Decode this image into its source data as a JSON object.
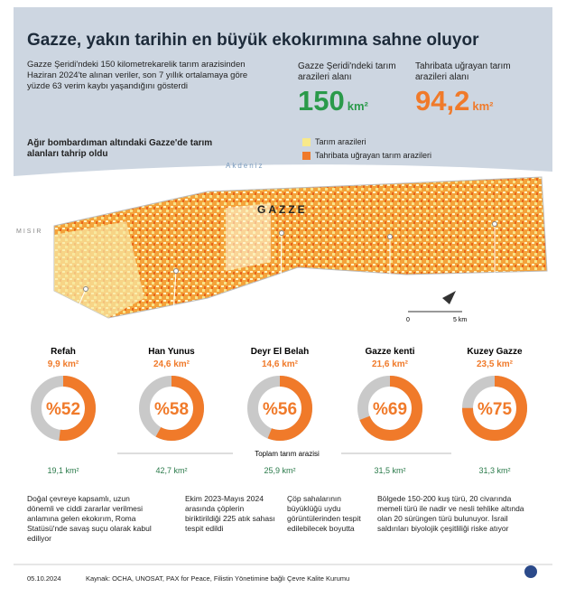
{
  "header": {
    "title": "Gazze, yakın tarihin en büyük ekokırımına sahne oluyor",
    "intro": "Gazze Şeridi'ndeki 150 kilometrekarelik tarım arazisinden Haziran 2024'te alınan veriler, son 7 yıllık ortalamaya göre yüzde 63 verim kaybı yaşandığını gösterdi"
  },
  "stats": [
    {
      "label": "Gazze Şeridi'ndeki tarım arazileri alanı",
      "value": "150",
      "unit": "km²"
    },
    {
      "label": "Tahribata uğrayan tarım arazileri alanı",
      "value": "94,2",
      "unit": "km²"
    }
  ],
  "map": {
    "subtitle": "Ağır bombardıman altındaki Gazze'de tarım alanları tahrip oldu",
    "legend": [
      "Tarım arazileri",
      "Tahribata uğrayan tarım arazileri"
    ],
    "sea": "Akdeniz",
    "country": "MISIR",
    "region": "GAZZE",
    "scale": [
      "0",
      "5 km"
    ]
  },
  "regions": [
    {
      "name": "Refah",
      "destroyed": "9,9 km²",
      "percent": 52,
      "percent_label": "%52",
      "total": "19,1 km²"
    },
    {
      "name": "Han Yunus",
      "destroyed": "24,6 km²",
      "percent": 58,
      "percent_label": "%58",
      "total": "42,7 km²"
    },
    {
      "name": "Deyr El Belah",
      "destroyed": "14,6 km²",
      "percent": 56,
      "percent_label": "%56",
      "total": "25,9 km²"
    },
    {
      "name": "Gazze kenti",
      "destroyed": "21,6 km²",
      "percent": 69,
      "percent_label": "%69",
      "total": "31,5 km²"
    },
    {
      "name": "Kuzey Gazze",
      "destroyed": "23,5 km²",
      "percent": 75,
      "percent_label": "%75",
      "total": "31,3 km²"
    }
  ],
  "total_label": "Toplam tarım arazisi",
  "notes": [
    "Doğal çevreye kapsamlı, uzun dönemli ve ciddi zararlar verilmesi anlamına gelen ekokırım, Roma Statüsü'nde savaş suçu olarak kabul ediliyor",
    "Ekim 2023-Mayıs 2024 arasında çöplerin biriktirildiği 225 atık sahası tespit edildi",
    "Çöp sahalarının büyüklüğü uydu görüntülerinden tespit edilebilecek boyutta",
    "Bölgede 150-200 kuş türü, 20 civarında memeli türü ile nadir ve nesli tehlike altında olan 20 sürüngen türü bulunuyor. İsrail saldırıları biyolojik çeşitliliği riske atıyor"
  ],
  "footer": {
    "date": "05.10.2024",
    "source": "Kaynak: OCHA, UNOSAT, PAX for Peace, Filistin Yönetimine bağlı Çevre Kalite Kurumu"
  }
}
